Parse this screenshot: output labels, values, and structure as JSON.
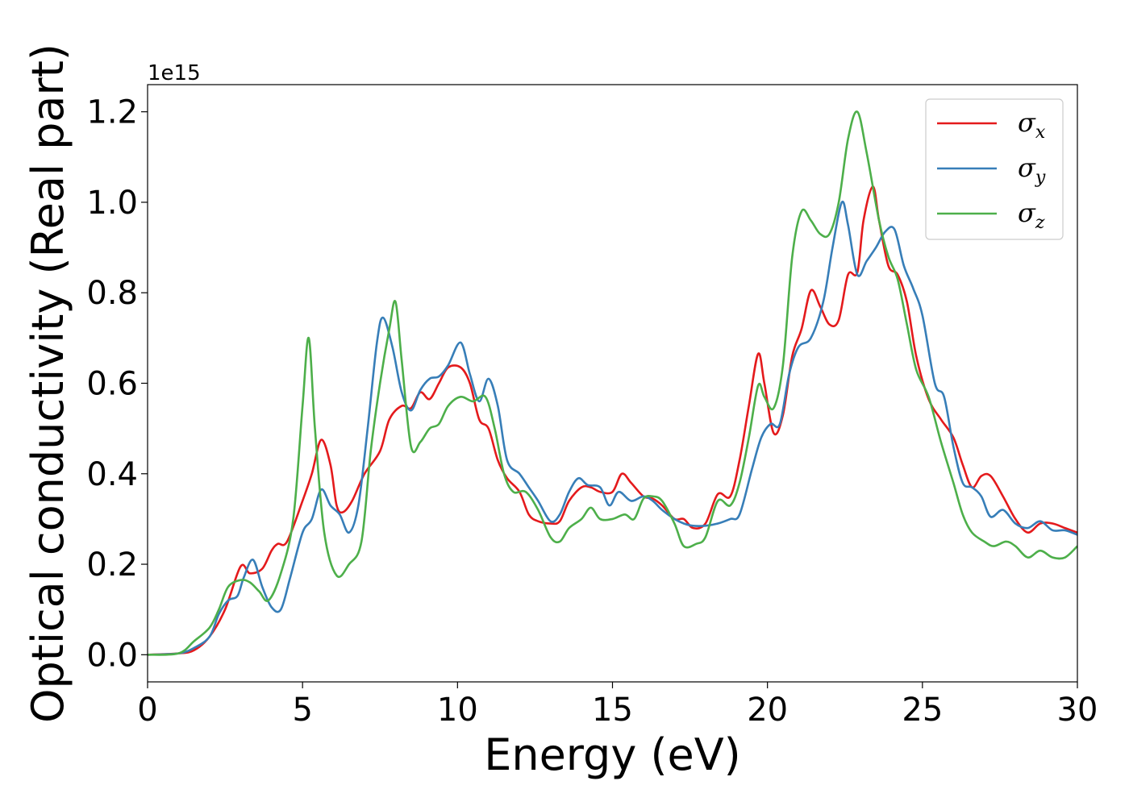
{
  "chart_data": {
    "type": "line",
    "title": "",
    "xlabel": "Energy (eV)",
    "ylabel": "Optical conductivity (Real part)",
    "y_offset_label": "1e15",
    "xlim": [
      0,
      30
    ],
    "ylim": [
      -0.06,
      1.26
    ],
    "x_ticks": [
      0,
      5,
      10,
      15,
      20,
      25,
      30
    ],
    "x_tick_labels": [
      "0",
      "5",
      "10",
      "15",
      "20",
      "25",
      "30"
    ],
    "y_ticks": [
      0.0,
      0.2,
      0.4,
      0.6,
      0.8,
      1.0,
      1.2
    ],
    "y_tick_labels": [
      "0.0",
      "0.2",
      "0.4",
      "0.6",
      "0.8",
      "1.0",
      "1.2"
    ],
    "grid": false,
    "legend_position": "top-right",
    "series": [
      {
        "name": "σx",
        "legend_symbol": "σ",
        "legend_sub": "x",
        "color": "#e41a1c",
        "points": [
          [
            0,
            0
          ],
          [
            1,
            0.003
          ],
          [
            1.5,
            0.01
          ],
          [
            2,
            0.04
          ],
          [
            2.5,
            0.1
          ],
          [
            3,
            0.195
          ],
          [
            3.3,
            0.18
          ],
          [
            3.7,
            0.19
          ],
          [
            4,
            0.23
          ],
          [
            4.2,
            0.245
          ],
          [
            4.5,
            0.25
          ],
          [
            5,
            0.34
          ],
          [
            5.3,
            0.4
          ],
          [
            5.6,
            0.475
          ],
          [
            5.9,
            0.42
          ],
          [
            6.1,
            0.33
          ],
          [
            6.3,
            0.315
          ],
          [
            6.6,
            0.34
          ],
          [
            7,
            0.4
          ],
          [
            7.5,
            0.45
          ],
          [
            7.8,
            0.52
          ],
          [
            8.2,
            0.55
          ],
          [
            8.5,
            0.545
          ],
          [
            8.8,
            0.58
          ],
          [
            9.1,
            0.565
          ],
          [
            9.4,
            0.6
          ],
          [
            9.7,
            0.635
          ],
          [
            10.1,
            0.635
          ],
          [
            10.4,
            0.6
          ],
          [
            10.7,
            0.52
          ],
          [
            11,
            0.5
          ],
          [
            11.3,
            0.43
          ],
          [
            11.6,
            0.39
          ],
          [
            12,
            0.36
          ],
          [
            12.3,
            0.31
          ],
          [
            12.6,
            0.295
          ],
          [
            13,
            0.29
          ],
          [
            13.3,
            0.295
          ],
          [
            13.6,
            0.34
          ],
          [
            14,
            0.37
          ],
          [
            14.3,
            0.37
          ],
          [
            14.6,
            0.36
          ],
          [
            15,
            0.36
          ],
          [
            15.3,
            0.4
          ],
          [
            15.6,
            0.38
          ],
          [
            16,
            0.35
          ],
          [
            16.3,
            0.345
          ],
          [
            16.6,
            0.33
          ],
          [
            17,
            0.3
          ],
          [
            17.3,
            0.3
          ],
          [
            17.6,
            0.28
          ],
          [
            18,
            0.29
          ],
          [
            18.4,
            0.355
          ],
          [
            18.8,
            0.35
          ],
          [
            19.1,
            0.43
          ],
          [
            19.4,
            0.55
          ],
          [
            19.7,
            0.665
          ],
          [
            19.9,
            0.6
          ],
          [
            20.2,
            0.49
          ],
          [
            20.5,
            0.53
          ],
          [
            20.8,
            0.66
          ],
          [
            21.1,
            0.72
          ],
          [
            21.4,
            0.805
          ],
          [
            21.7,
            0.77
          ],
          [
            22,
            0.73
          ],
          [
            22.3,
            0.74
          ],
          [
            22.6,
            0.84
          ],
          [
            22.9,
            0.845
          ],
          [
            23.1,
            0.96
          ],
          [
            23.4,
            1.035
          ],
          [
            23.6,
            0.96
          ],
          [
            23.9,
            0.86
          ],
          [
            24.2,
            0.84
          ],
          [
            24.5,
            0.78
          ],
          [
            24.8,
            0.66
          ],
          [
            25.2,
            0.565
          ],
          [
            25.6,
            0.52
          ],
          [
            26,
            0.48
          ],
          [
            26.3,
            0.42
          ],
          [
            26.6,
            0.37
          ],
          [
            26.9,
            0.395
          ],
          [
            27.2,
            0.395
          ],
          [
            27.6,
            0.35
          ],
          [
            28,
            0.3
          ],
          [
            28.4,
            0.27
          ],
          [
            28.8,
            0.29
          ],
          [
            29.2,
            0.29
          ],
          [
            29.6,
            0.28
          ],
          [
            30,
            0.27
          ]
        ]
      },
      {
        "name": "σy",
        "legend_symbol": "σ",
        "legend_sub": "y",
        "color": "#377eb8",
        "points": [
          [
            0,
            0
          ],
          [
            1,
            0.003
          ],
          [
            1.5,
            0.015
          ],
          [
            2,
            0.04
          ],
          [
            2.3,
            0.09
          ],
          [
            2.6,
            0.12
          ],
          [
            2.9,
            0.13
          ],
          [
            3.1,
            0.17
          ],
          [
            3.4,
            0.21
          ],
          [
            3.7,
            0.15
          ],
          [
            4,
            0.105
          ],
          [
            4.3,
            0.1
          ],
          [
            4.6,
            0.17
          ],
          [
            5,
            0.27
          ],
          [
            5.3,
            0.3
          ],
          [
            5.6,
            0.365
          ],
          [
            5.9,
            0.33
          ],
          [
            6.2,
            0.31
          ],
          [
            6.5,
            0.27
          ],
          [
            6.8,
            0.33
          ],
          [
            7.1,
            0.5
          ],
          [
            7.4,
            0.69
          ],
          [
            7.6,
            0.745
          ],
          [
            7.9,
            0.68
          ],
          [
            8.2,
            0.58
          ],
          [
            8.5,
            0.54
          ],
          [
            8.8,
            0.585
          ],
          [
            9.1,
            0.61
          ],
          [
            9.4,
            0.615
          ],
          [
            9.7,
            0.64
          ],
          [
            10.1,
            0.69
          ],
          [
            10.4,
            0.62
          ],
          [
            10.7,
            0.56
          ],
          [
            11,
            0.61
          ],
          [
            11.3,
            0.55
          ],
          [
            11.6,
            0.43
          ],
          [
            12,
            0.4
          ],
          [
            12.3,
            0.37
          ],
          [
            12.6,
            0.34
          ],
          [
            13,
            0.295
          ],
          [
            13.3,
            0.31
          ],
          [
            13.6,
            0.36
          ],
          [
            13.9,
            0.39
          ],
          [
            14.2,
            0.375
          ],
          [
            14.6,
            0.37
          ],
          [
            14.9,
            0.33
          ],
          [
            15.2,
            0.36
          ],
          [
            15.6,
            0.34
          ],
          [
            16,
            0.35
          ],
          [
            16.3,
            0.34
          ],
          [
            16.6,
            0.32
          ],
          [
            17,
            0.3
          ],
          [
            17.3,
            0.29
          ],
          [
            17.6,
            0.285
          ],
          [
            18,
            0.285
          ],
          [
            18.4,
            0.29
          ],
          [
            18.8,
            0.3
          ],
          [
            19.1,
            0.31
          ],
          [
            19.5,
            0.41
          ],
          [
            19.8,
            0.48
          ],
          [
            20.1,
            0.51
          ],
          [
            20.4,
            0.51
          ],
          [
            20.7,
            0.62
          ],
          [
            21,
            0.68
          ],
          [
            21.4,
            0.7
          ],
          [
            21.8,
            0.78
          ],
          [
            22.1,
            0.9
          ],
          [
            22.4,
            1.0
          ],
          [
            22.6,
            0.95
          ],
          [
            22.9,
            0.84
          ],
          [
            23.2,
            0.87
          ],
          [
            23.5,
            0.9
          ],
          [
            23.8,
            0.935
          ],
          [
            24.1,
            0.94
          ],
          [
            24.4,
            0.86
          ],
          [
            24.7,
            0.81
          ],
          [
            25,
            0.75
          ],
          [
            25.4,
            0.6
          ],
          [
            25.7,
            0.57
          ],
          [
            26,
            0.46
          ],
          [
            26.3,
            0.38
          ],
          [
            26.6,
            0.37
          ],
          [
            26.9,
            0.35
          ],
          [
            27.2,
            0.305
          ],
          [
            27.6,
            0.32
          ],
          [
            28,
            0.29
          ],
          [
            28.4,
            0.28
          ],
          [
            28.8,
            0.295
          ],
          [
            29.2,
            0.275
          ],
          [
            29.6,
            0.275
          ],
          [
            30,
            0.265
          ]
        ]
      },
      {
        "name": "σz",
        "legend_symbol": "σ",
        "legend_sub": "z",
        "color": "#4daf4a",
        "points": [
          [
            0,
            0
          ],
          [
            1,
            0.003
          ],
          [
            1.5,
            0.03
          ],
          [
            2,
            0.06
          ],
          [
            2.3,
            0.1
          ],
          [
            2.6,
            0.15
          ],
          [
            3,
            0.165
          ],
          [
            3.3,
            0.16
          ],
          [
            3.6,
            0.14
          ],
          [
            3.9,
            0.12
          ],
          [
            4.3,
            0.18
          ],
          [
            4.7,
            0.3
          ],
          [
            5,
            0.55
          ],
          [
            5.2,
            0.7
          ],
          [
            5.4,
            0.5
          ],
          [
            5.7,
            0.27
          ],
          [
            6.1,
            0.175
          ],
          [
            6.5,
            0.2
          ],
          [
            6.9,
            0.25
          ],
          [
            7.2,
            0.45
          ],
          [
            7.5,
            0.6
          ],
          [
            7.8,
            0.72
          ],
          [
            8,
            0.78
          ],
          [
            8.2,
            0.65
          ],
          [
            8.5,
            0.46
          ],
          [
            8.8,
            0.47
          ],
          [
            9.1,
            0.5
          ],
          [
            9.4,
            0.51
          ],
          [
            9.7,
            0.55
          ],
          [
            10.1,
            0.57
          ],
          [
            10.5,
            0.56
          ],
          [
            10.9,
            0.57
          ],
          [
            11.2,
            0.5
          ],
          [
            11.5,
            0.4
          ],
          [
            11.8,
            0.36
          ],
          [
            12.2,
            0.36
          ],
          [
            12.6,
            0.32
          ],
          [
            13,
            0.26
          ],
          [
            13.3,
            0.25
          ],
          [
            13.6,
            0.28
          ],
          [
            14,
            0.3
          ],
          [
            14.3,
            0.325
          ],
          [
            14.6,
            0.3
          ],
          [
            15,
            0.3
          ],
          [
            15.4,
            0.31
          ],
          [
            15.7,
            0.3
          ],
          [
            16,
            0.345
          ],
          [
            16.3,
            0.35
          ],
          [
            16.6,
            0.34
          ],
          [
            17,
            0.29
          ],
          [
            17.3,
            0.24
          ],
          [
            17.7,
            0.245
          ],
          [
            18,
            0.26
          ],
          [
            18.4,
            0.34
          ],
          [
            18.8,
            0.33
          ],
          [
            19.1,
            0.38
          ],
          [
            19.4,
            0.48
          ],
          [
            19.7,
            0.595
          ],
          [
            19.9,
            0.57
          ],
          [
            20.2,
            0.545
          ],
          [
            20.5,
            0.64
          ],
          [
            20.8,
            0.88
          ],
          [
            21.1,
            0.98
          ],
          [
            21.4,
            0.96
          ],
          [
            21.7,
            0.93
          ],
          [
            22,
            0.93
          ],
          [
            22.3,
            1.0
          ],
          [
            22.6,
            1.14
          ],
          [
            22.9,
            1.2
          ],
          [
            23.2,
            1.11
          ],
          [
            23.6,
            0.96
          ],
          [
            23.9,
            0.88
          ],
          [
            24.2,
            0.83
          ],
          [
            24.5,
            0.73
          ],
          [
            24.8,
            0.63
          ],
          [
            25.2,
            0.57
          ],
          [
            25.6,
            0.47
          ],
          [
            26,
            0.38
          ],
          [
            26.3,
            0.31
          ],
          [
            26.6,
            0.27
          ],
          [
            27,
            0.25
          ],
          [
            27.3,
            0.24
          ],
          [
            27.7,
            0.25
          ],
          [
            28,
            0.24
          ],
          [
            28.4,
            0.215
          ],
          [
            28.8,
            0.23
          ],
          [
            29.2,
            0.215
          ],
          [
            29.6,
            0.215
          ],
          [
            30,
            0.24
          ]
        ]
      }
    ]
  }
}
